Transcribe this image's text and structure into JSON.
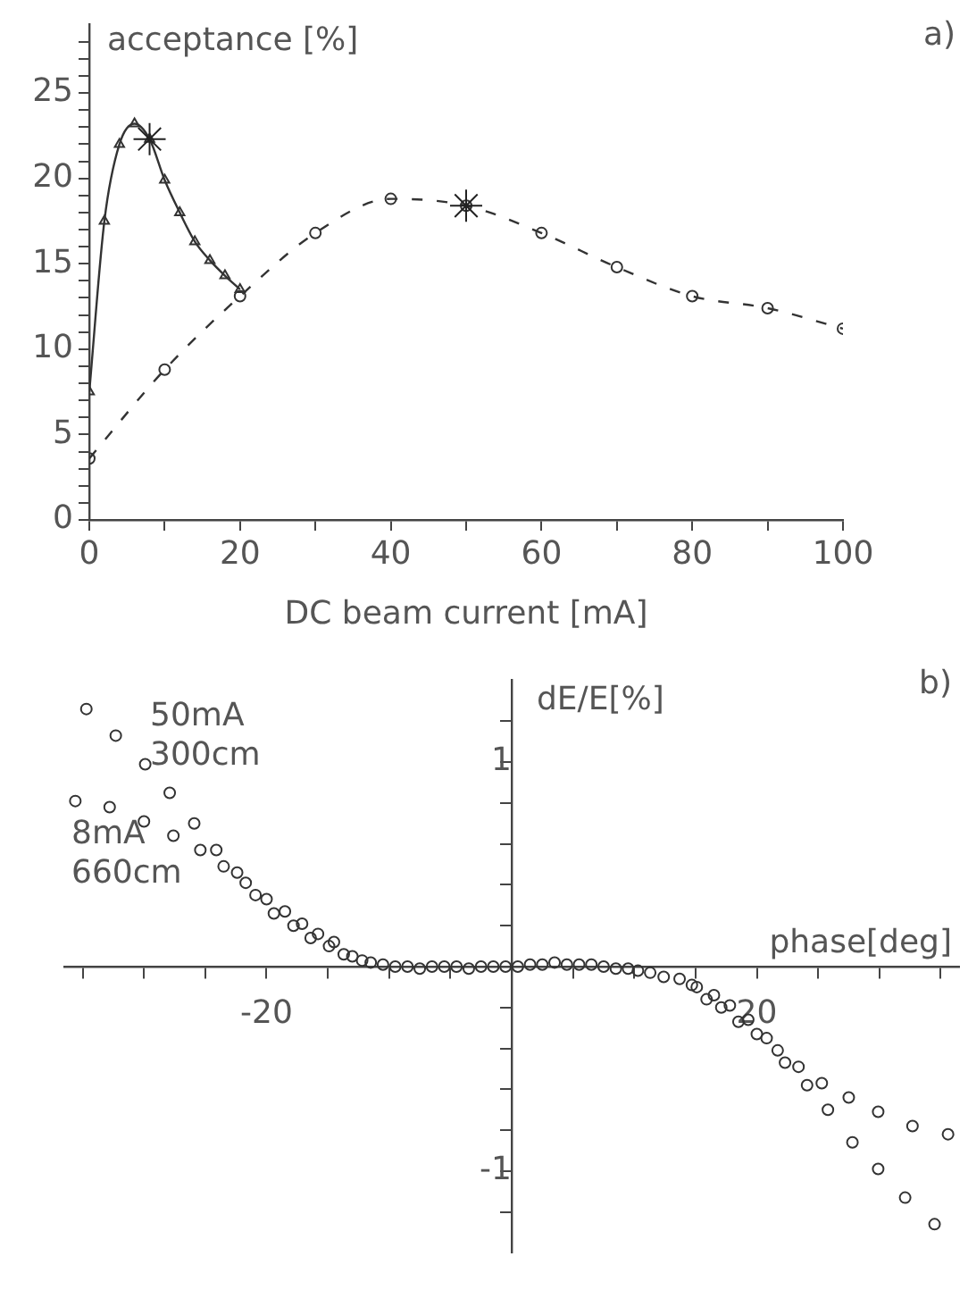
{
  "chart_data": [
    {
      "type": "line",
      "xlabel": "DC beam current [mA]",
      "ylabel": "acceptance [%]",
      "annotations": [
        "a)"
      ],
      "grid": false,
      "legend": false,
      "xlim": [
        0,
        100
      ],
      "xticks": [
        0,
        {
          "value": 10,
          "label": null
        },
        20,
        {
          "value": 30,
          "label": null
        },
        40,
        {
          "value": 50,
          "label": null
        },
        60,
        {
          "value": 70,
          "label": null
        },
        80,
        {
          "value": 90,
          "label": null
        },
        100
      ],
      "ylim": [
        0,
        29
      ],
      "yticks": [
        0,
        {
          "value": 1,
          "label": null
        },
        {
          "value": 2,
          "label": null
        },
        {
          "value": 3,
          "label": null
        },
        {
          "value": 4,
          "label": null
        },
        5,
        {
          "value": 6,
          "label": null
        },
        {
          "value": 7,
          "label": null
        },
        {
          "value": 8,
          "label": null
        },
        {
          "value": 9,
          "label": null
        },
        10,
        {
          "value": 11,
          "label": null
        },
        {
          "value": 12,
          "label": null
        },
        {
          "value": 13,
          "label": null
        },
        {
          "value": 14,
          "label": null
        },
        15,
        {
          "value": 16,
          "label": null
        },
        {
          "value": 17,
          "label": null
        },
        {
          "value": 18,
          "label": null
        },
        {
          "value": 19,
          "label": null
        },
        20,
        {
          "value": 21,
          "label": null
        },
        {
          "value": 22,
          "label": null
        },
        {
          "value": 23,
          "label": null
        },
        {
          "value": 24,
          "label": null
        },
        25,
        {
          "value": 26,
          "label": null
        },
        {
          "value": 27,
          "label": null
        },
        {
          "value": 28,
          "label": null
        }
      ],
      "series": [
        {
          "color": "#333333",
          "marker": "triangle",
          "line_style": "solid",
          "x": [
            0,
            2,
            4,
            6,
            8,
            10,
            12,
            14,
            16,
            18,
            20
          ],
          "values": [
            7.5,
            17.5,
            22.0,
            23.2,
            22.3,
            19.9,
            18.0,
            16.3,
            15.2,
            14.3,
            13.5
          ]
        },
        {
          "color": "#333333",
          "marker": "circle",
          "line_style": "dashed",
          "x": [
            0,
            10,
            20,
            30,
            40,
            50,
            60,
            70,
            80,
            90,
            100
          ],
          "values": [
            3.6,
            8.8,
            13.1,
            16.8,
            18.8,
            18.4,
            16.8,
            14.8,
            13.1,
            12.4,
            11.2
          ]
        },
        {
          "type": "scatter",
          "color": "#222222",
          "marker": "cross",
          "x": [
            8,
            50
          ],
          "values": [
            22.3,
            18.4
          ]
        }
      ]
    },
    {
      "type": "scatter",
      "xlabel": "phase[deg]",
      "ylabel": "dE/E[%]",
      "grid": false,
      "legend": false,
      "marker": "circle",
      "annotations": [
        "b)",
        "50mA\n300cm",
        "8mA\n660cm"
      ],
      "xlim": [
        -36.5,
        36.5
      ],
      "xticks": [
        {
          "value": -35,
          "label": null
        },
        {
          "value": -30,
          "label": null
        },
        {
          "value": -25,
          "label": null
        },
        -20,
        {
          "value": -15,
          "label": null
        },
        {
          "value": -10,
          "label": null
        },
        {
          "value": -5,
          "label": null
        },
        {
          "value": 5,
          "label": null
        },
        {
          "value": 10,
          "label": null
        },
        {
          "value": 15,
          "label": null
        },
        20,
        {
          "value": 25,
          "label": null
        },
        {
          "value": 30,
          "label": null
        },
        {
          "value": 35,
          "label": null
        }
      ],
      "ylim": [
        -1.4,
        1.4
      ],
      "yticks": [
        {
          "value": -1.2,
          "label": null
        },
        -1,
        {
          "value": -0.8,
          "label": null
        },
        {
          "value": -0.6,
          "label": null
        },
        {
          "value": -0.4,
          "label": null
        },
        {
          "value": -0.2,
          "label": null
        },
        {
          "value": 0.2,
          "label": null
        },
        {
          "value": 0.4,
          "label": null
        },
        {
          "value": 0.6,
          "label": null
        },
        {
          "value": 0.8,
          "label": null
        },
        1,
        {
          "value": 1.2,
          "label": null
        }
      ],
      "series": [
        {
          "color": "#333333",
          "x": [
            -34.7,
            -32.3,
            -29.9,
            -27.9,
            -25.9,
            -24.1,
            -22.4,
            -20.9,
            -19.4,
            -17.8,
            -16.4,
            -14.9,
            -13.7,
            -12.2,
            -10.5,
            -8.5,
            -6.5,
            -4.5,
            -2.5,
            -0.5,
            1.5,
            3.5,
            5.5,
            7.5,
            9.5,
            11.3,
            13.7,
            15.1,
            16.5,
            17.8,
            19.3,
            20.8,
            22.3,
            24.1,
            25.8,
            27.8,
            29.9,
            32.1,
            34.5
          ],
          "values": [
            1.26,
            1.13,
            0.99,
            0.85,
            0.7,
            0.57,
            0.46,
            0.35,
            0.26,
            0.2,
            0.14,
            0.1,
            0.06,
            0.03,
            0.01,
            0,
            0,
            0,
            0,
            0,
            0.01,
            0.02,
            0.01,
            0,
            -0.01,
            -0.03,
            -0.06,
            -0.1,
            -0.14,
            -0.19,
            -0.26,
            -0.35,
            -0.47,
            -0.58,
            -0.7,
            -0.86,
            -0.99,
            -1.13,
            -1.26
          ]
        },
        {
          "color": "#333333",
          "x": [
            -35.6,
            -32.8,
            -30.0,
            -27.6,
            -25.4,
            -23.5,
            -21.7,
            -20.0,
            -18.5,
            -17.1,
            -15.8,
            -14.5,
            -13.0,
            -11.5,
            -9.5,
            -7.5,
            -5.5,
            -3.5,
            -1.5,
            0.5,
            2.5,
            4.5,
            6.5,
            8.5,
            10.3,
            12.4,
            14.7,
            15.9,
            17.1,
            18.5,
            20.0,
            21.7,
            23.4,
            25.3,
            27.5,
            29.9,
            32.7,
            35.6
          ],
          "values": [
            0.81,
            0.78,
            0.71,
            0.64,
            0.57,
            0.49,
            0.41,
            0.33,
            0.27,
            0.21,
            0.16,
            0.12,
            0.05,
            0.02,
            0,
            -0.01,
            0,
            -0.01,
            0,
            0,
            0.01,
            0.01,
            0.01,
            -0.01,
            -0.02,
            -0.05,
            -0.09,
            -0.16,
            -0.2,
            -0.27,
            -0.33,
            -0.41,
            -0.49,
            -0.57,
            -0.64,
            -0.71,
            -0.78,
            -0.82
          ]
        }
      ]
    }
  ]
}
